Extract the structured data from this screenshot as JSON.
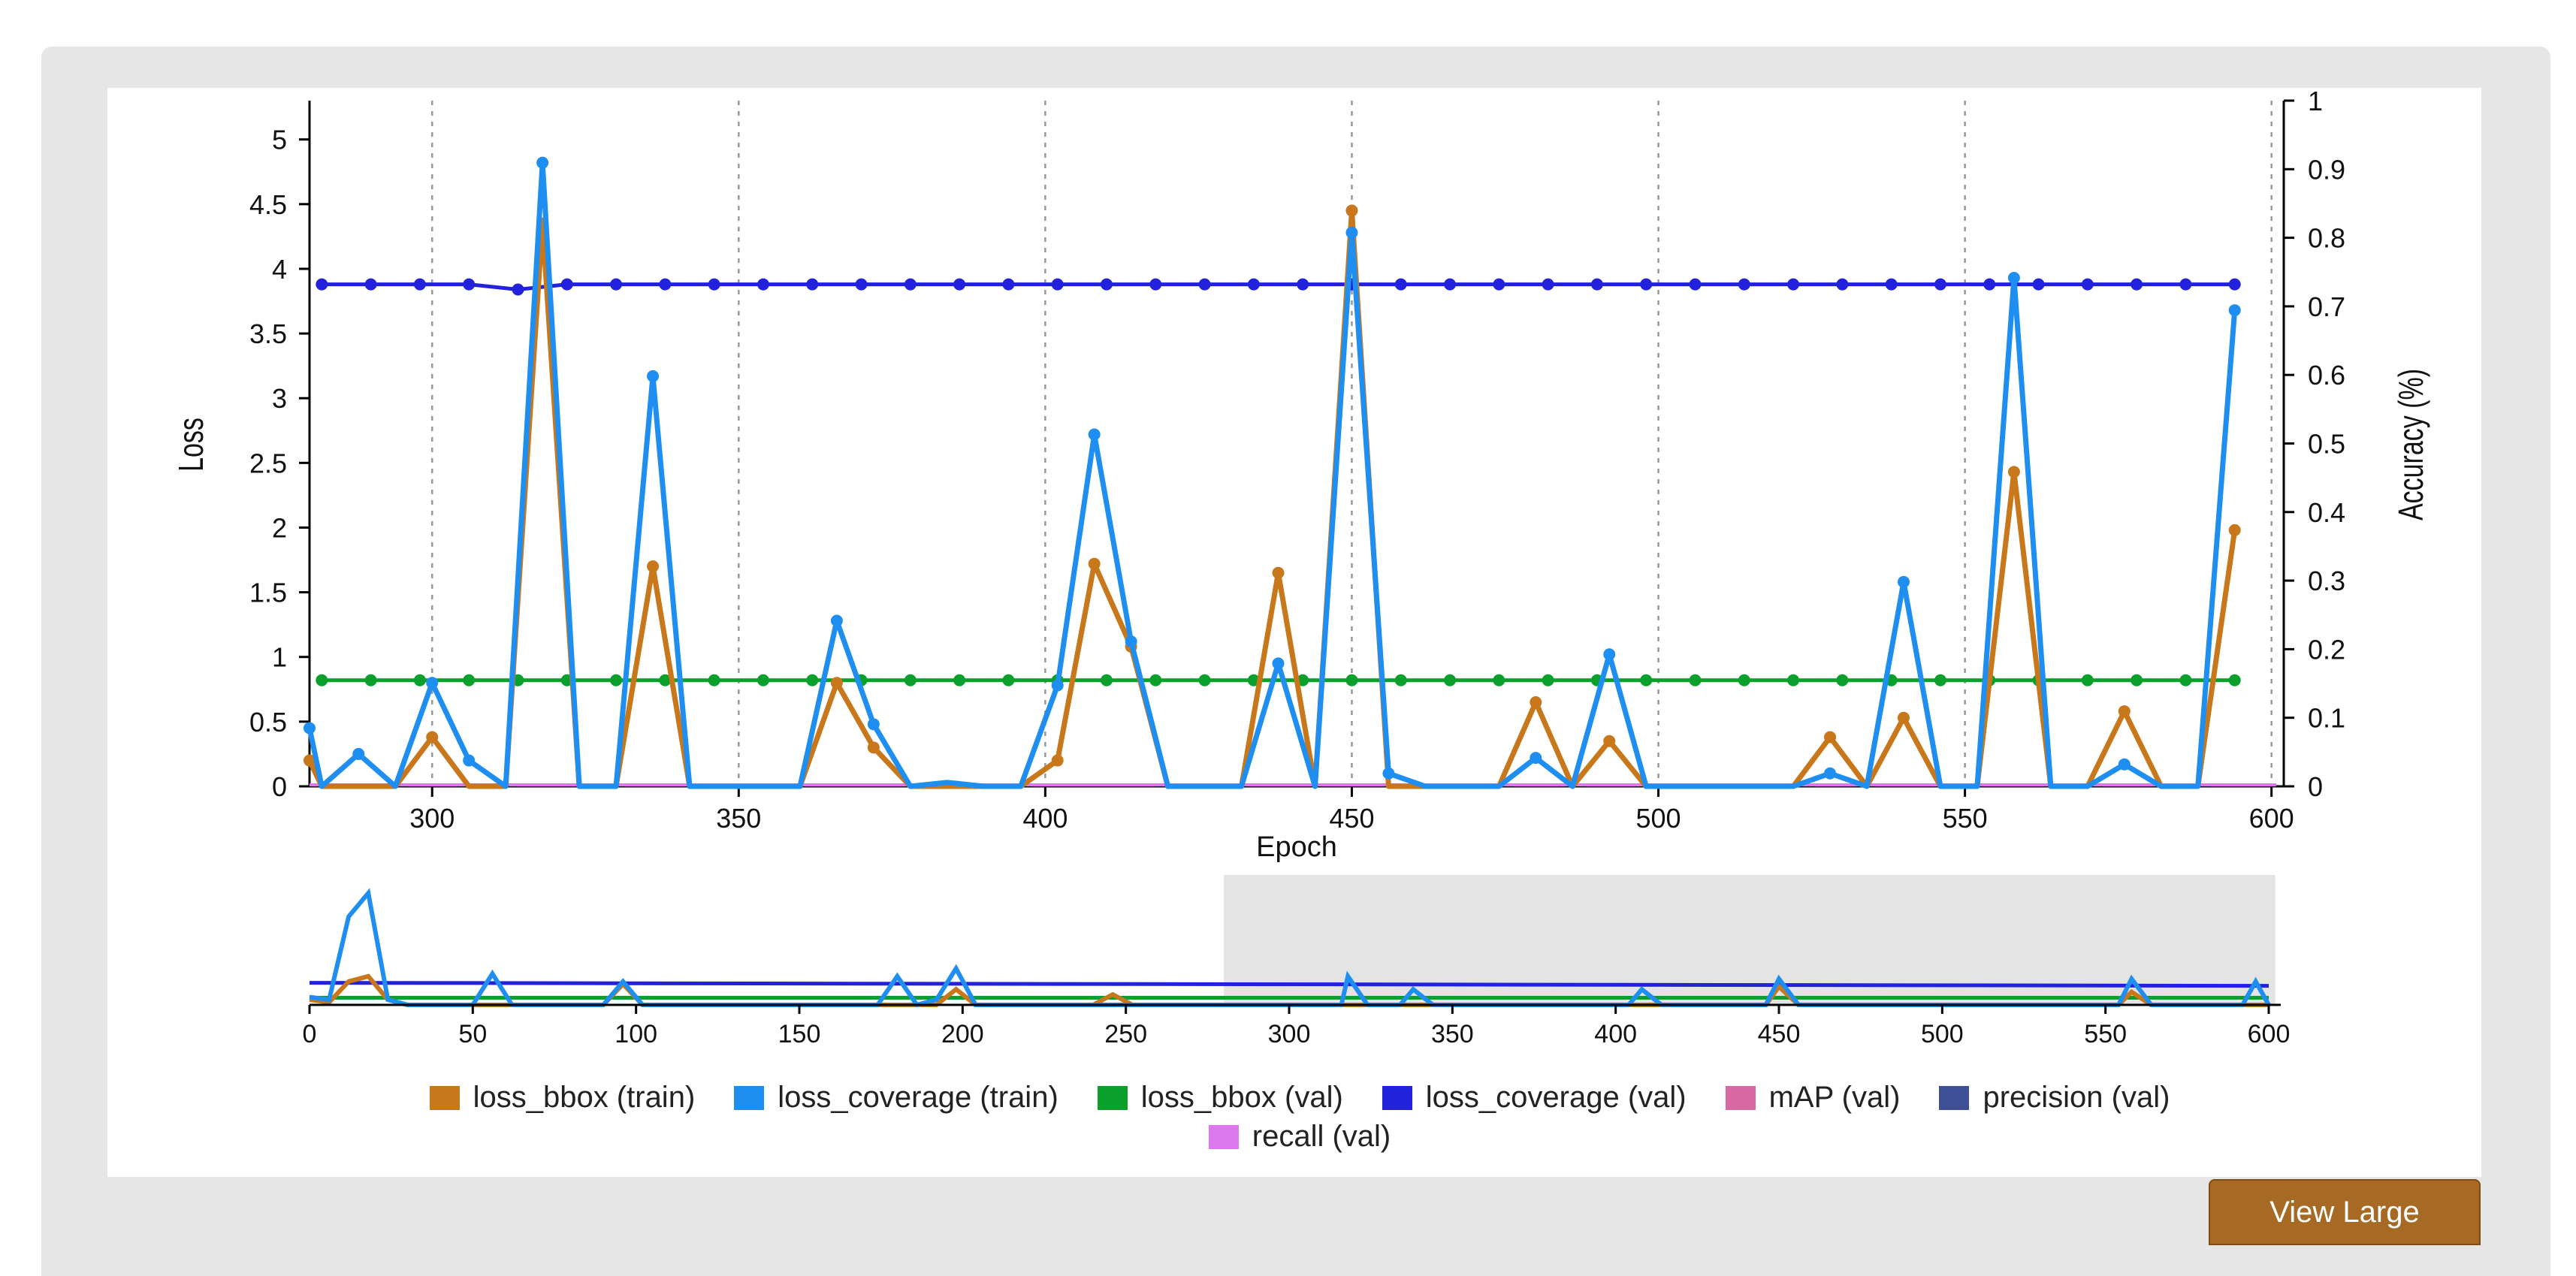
{
  "view_large_label": "View Large",
  "chart_data": {
    "type": "line",
    "xlabel": "Epoch",
    "ylabel": "Loss",
    "y2label": "Accuracy (%)",
    "xlim": [
      280,
      602
    ],
    "ylim": [
      0,
      5.3
    ],
    "y2lim": [
      0,
      1
    ],
    "xticks": [
      300,
      350,
      400,
      450,
      500,
      550,
      600
    ],
    "yticks": [
      0,
      0.5,
      1,
      1.5,
      2,
      2.5,
      3,
      3.5,
      4,
      4.5,
      5
    ],
    "y2ticks": [
      0,
      0.1,
      0.2,
      0.3,
      0.4,
      0.5,
      0.6,
      0.7,
      0.8,
      0.9,
      1
    ],
    "y2tick_labels": [
      "0",
      "0.1",
      "0.2",
      "0.3",
      "0.4",
      "0.5",
      "0.6",
      "0.7",
      "0.8",
      "0.9",
      "1"
    ],
    "grid": "vertical-dashed",
    "legend_position": "bottom",
    "series": [
      {
        "name": "loss_bbox (train)",
        "color": "#c8771a",
        "axis": "left",
        "x": [
          280,
          282,
          288,
          294,
          300,
          306,
          312,
          318,
          324,
          330,
          336,
          342,
          348,
          354,
          360,
          366,
          372,
          378,
          384,
          390,
          396,
          402,
          408,
          414,
          420,
          426,
          432,
          438,
          444,
          450,
          456,
          462,
          468,
          474,
          480,
          486,
          492,
          498,
          504,
          510,
          516,
          522,
          528,
          534,
          540,
          546,
          552,
          558,
          564,
          570,
          576,
          582,
          588,
          594
        ],
        "y": [
          0.2,
          0,
          0,
          0,
          0.38,
          0,
          0,
          4.35,
          0,
          0,
          1.7,
          0,
          0,
          0,
          0,
          0.8,
          0.3,
          0,
          0,
          0,
          0,
          0.2,
          1.72,
          1.08,
          0,
          0,
          0,
          1.65,
          0,
          4.45,
          0,
          0,
          0,
          0,
          0.65,
          0,
          0.35,
          0,
          0,
          0,
          0,
          0,
          0.38,
          0,
          0.53,
          0,
          0,
          2.43,
          0,
          0,
          0.58,
          0,
          0,
          1.98
        ]
      },
      {
        "name": "loss_coverage (train)",
        "color": "#1e8ff0",
        "axis": "left",
        "x": [
          280,
          282,
          288,
          294,
          300,
          306,
          312,
          318,
          324,
          330,
          336,
          342,
          348,
          354,
          360,
          366,
          372,
          378,
          384,
          390,
          396,
          402,
          408,
          414,
          420,
          426,
          432,
          438,
          444,
          450,
          456,
          462,
          468,
          474,
          480,
          486,
          492,
          498,
          504,
          510,
          516,
          522,
          528,
          534,
          540,
          546,
          552,
          558,
          564,
          570,
          576,
          582,
          588,
          594
        ],
        "y": [
          0.45,
          0,
          0.25,
          0,
          0.8,
          0.2,
          0,
          4.82,
          0,
          0,
          3.17,
          0,
          0,
          0,
          0,
          1.28,
          0.48,
          0,
          0.03,
          0,
          0,
          0.78,
          2.72,
          1.12,
          0,
          0,
          0,
          0.95,
          0,
          4.28,
          0.1,
          0,
          0,
          0,
          0.22,
          0,
          1.02,
          0,
          0,
          0,
          0,
          0,
          0.1,
          0,
          1.58,
          0,
          0,
          3.93,
          0,
          0,
          0.17,
          0,
          0,
          3.68
        ]
      },
      {
        "name": "loss_bbox (val)",
        "color": "#0aa02b",
        "axis": "left",
        "marker": "dot",
        "constant": 0.82
      },
      {
        "name": "loss_coverage (val)",
        "color": "#2222dd",
        "axis": "left",
        "marker": "dot",
        "constant": 3.88
      },
      {
        "name": "mAP (val)",
        "color": "#d86aa3",
        "axis": "right",
        "constant": 0
      },
      {
        "name": "precision (val)",
        "color": "#3f4f96",
        "axis": "right",
        "constant": 0
      },
      {
        "name": "recall (val)",
        "color": "#dd77ee",
        "axis": "right",
        "constant": 0
      }
    ],
    "overview": {
      "xlim": [
        0,
        600
      ],
      "xticks": [
        0,
        50,
        100,
        150,
        200,
        250,
        300,
        350,
        400,
        450,
        500,
        550,
        600
      ],
      "selection": [
        280,
        602
      ],
      "coverage_train": {
        "x": [
          0,
          6,
          12,
          18,
          24,
          30,
          50,
          56,
          62,
          90,
          96,
          102,
          174,
          180,
          186,
          192,
          198,
          204,
          316,
          318,
          324,
          334,
          338,
          344,
          404,
          408,
          414,
          446,
          450,
          456,
          554,
          558,
          564,
          592,
          596,
          600
        ],
        "y": [
          0.3,
          0.2,
          3.4,
          4.3,
          0.2,
          0,
          0,
          1.2,
          0,
          0,
          0.9,
          0,
          0,
          1.1,
          0,
          0.2,
          1.4,
          0,
          0,
          1.1,
          0,
          0,
          0.6,
          0,
          0,
          0.6,
          0,
          0,
          1.0,
          0,
          0,
          1.0,
          0,
          0,
          0.9,
          0
        ]
      },
      "bbox_train": {
        "x": [
          0,
          6,
          12,
          18,
          24,
          30,
          90,
          96,
          102,
          192,
          198,
          204,
          240,
          246,
          252,
          446,
          450,
          456,
          554,
          558,
          564,
          600
        ],
        "y": [
          0.2,
          0.1,
          0.9,
          1.1,
          0.2,
          0,
          0,
          0.8,
          0,
          0,
          0.6,
          0,
          0,
          0.4,
          0,
          0,
          0.7,
          0,
          0,
          0.5,
          0,
          0
        ],
        "note_hidden": ""
      },
      "coverage_val": 0.85,
      "bbox_val": 0.1
    }
  }
}
